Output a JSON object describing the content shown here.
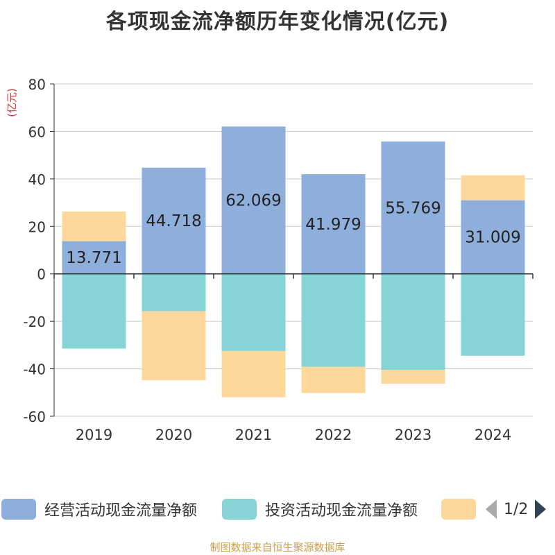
{
  "title": "各项现金流净额历年变化情况(亿元)",
  "source": "制图数据来自恒生聚源数据库",
  "legend": {
    "items": [
      {
        "label": "经营活动现金流量净额",
        "color": "#8eaedb"
      },
      {
        "label": "投资活动现金流量净额",
        "color": "#87d4d7"
      },
      {
        "label": "",
        "color": "#fed89a"
      }
    ],
    "page_label": "1/2"
  },
  "chart_data": {
    "type": "bar",
    "stacked": true,
    "ylabel": "(亿元)",
    "ylim": [
      -60,
      80
    ],
    "yticks": [
      80,
      60,
      40,
      20,
      0,
      -20,
      -40,
      -60
    ],
    "grid": true,
    "legend_position": "bottom",
    "categories": [
      "2019",
      "2020",
      "2021",
      "2022",
      "2023",
      "2024"
    ],
    "series": [
      {
        "name": "经营活动现金流量净额",
        "color": "#8eaedb",
        "values": [
          13.771,
          44.718,
          62.069,
          41.979,
          55.769,
          31.009
        ],
        "show_labels": true
      },
      {
        "name": "投资活动现金流量净额",
        "color": "#87d4d7",
        "values": [
          -31.5,
          -15.8,
          -32.5,
          -39.2,
          -40.5,
          -34.5
        ],
        "show_labels": false
      },
      {
        "name": "",
        "color": "#fed89a",
        "values": [
          12.5,
          -29.0,
          -19.5,
          -11.0,
          -5.8,
          10.5
        ],
        "show_labels": false
      }
    ]
  }
}
